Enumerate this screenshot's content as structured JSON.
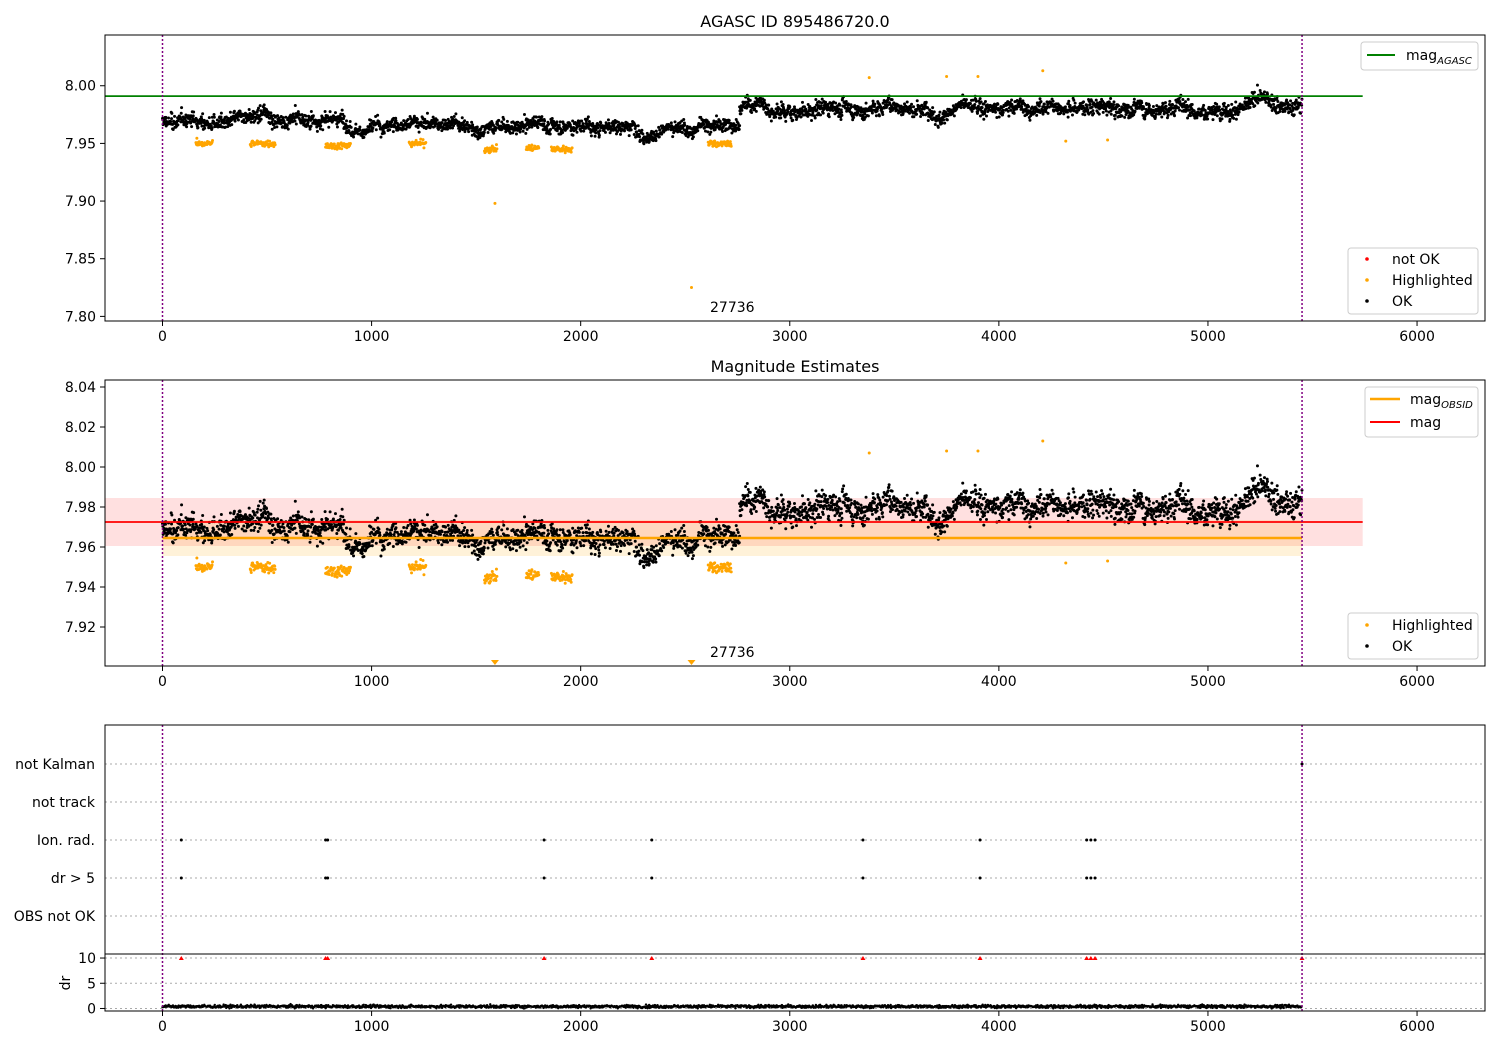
{
  "chart_data": [
    {
      "type": "scatter",
      "title": "AGASC ID 895486720.0",
      "xlim": [
        -275,
        6325
      ],
      "ylim": [
        7.796,
        8.044
      ],
      "xticks": [
        0,
        1000,
        2000,
        3000,
        4000,
        5000,
        6000
      ],
      "yticks": [
        7.8,
        7.85,
        7.9,
        7.95,
        8.0
      ],
      "ytick_labels": [
        "7.80",
        "7.85",
        "7.90",
        "7.95",
        "8.00"
      ],
      "vlines": [
        0,
        5450
      ],
      "annotation": {
        "text": "27736",
        "x": 2620,
        "y": 7.806
      },
      "hline": {
        "label": "mag",
        "label_sub": "AGASC",
        "y": 7.991,
        "x_range": [
          -275,
          5740
        ],
        "color": "#008000"
      },
      "legend_top": [
        {
          "label": "mag",
          "sub": "AGASC",
          "type": "line",
          "color": "#008000"
        }
      ],
      "legend_bottom": [
        {
          "label": "not OK",
          "type": "marker",
          "color": "#ff0000"
        },
        {
          "label": "Highlighted",
          "type": "marker",
          "color": "#ffa500"
        },
        {
          "label": "OK",
          "type": "marker",
          "color": "#000000"
        }
      ],
      "series": [
        {
          "name": "OK",
          "color": "#000000",
          "segments": [
            {
              "x": [
                0,
                2760
              ],
              "mean": 7.968,
              "spread": 0.011
            },
            {
              "x": [
                2760,
                5450
              ],
              "mean": 7.983,
              "spread": 0.012
            }
          ]
        },
        {
          "name": "Highlighted",
          "color": "#ffa500",
          "clusters": [
            {
              "x": [
                160,
                240
              ],
              "y": 7.95
            },
            {
              "x": [
                420,
                540
              ],
              "y": 7.95
            },
            {
              "x": [
                780,
                900
              ],
              "y": 7.948
            },
            {
              "x": [
                1180,
                1260
              ],
              "y": 7.95
            },
            {
              "x": [
                1540,
                1600
              ],
              "y": 7.945
            },
            {
              "x": [
                1740,
                1800
              ],
              "y": 7.946
            },
            {
              "x": [
                1860,
                1960
              ],
              "y": 7.945
            },
            {
              "x": [
                2610,
                2720
              ],
              "y": 7.95
            }
          ],
          "points": [
            {
              "x": 1590,
              "y": 7.898
            },
            {
              "x": 2530,
              "y": 7.825
            },
            {
              "x": 3380,
              "y": 8.007
            },
            {
              "x": 3750,
              "y": 8.008
            },
            {
              "x": 3900,
              "y": 8.008
            },
            {
              "x": 4210,
              "y": 8.013
            },
            {
              "x": 4320,
              "y": 7.952
            },
            {
              "x": 4520,
              "y": 7.953
            }
          ]
        }
      ]
    },
    {
      "type": "scatter",
      "title": "Magnitude Estimates",
      "xlim": [
        -275,
        6325
      ],
      "ylim": [
        7.9005,
        8.0435
      ],
      "xticks": [
        0,
        1000,
        2000,
        3000,
        4000,
        5000,
        6000
      ],
      "yticks": [
        7.92,
        7.94,
        7.96,
        7.98,
        8.0,
        8.02,
        8.04
      ],
      "ytick_labels": [
        "7.92",
        "7.94",
        "7.96",
        "7.98",
        "8.00",
        "8.02",
        "8.04"
      ],
      "vlines": [
        0,
        5450
      ],
      "annotation": {
        "text": "27736",
        "x": 2620,
        "y": 7.904
      },
      "mag_line": {
        "y": 7.9725,
        "band": [
          7.9605,
          7.9845
        ],
        "x_range": [
          -275,
          5740
        ],
        "color": "#ff0000"
      },
      "mag_obsid_line": {
        "y": 7.9645,
        "band": [
          7.9555,
          7.9735
        ],
        "x_range": [
          0,
          5450
        ],
        "color": "#ffa500"
      },
      "offscale_markers": [
        {
          "x": 1590
        },
        {
          "x": 2530
        }
      ],
      "legend_top": [
        {
          "label": "mag",
          "sub": "OBSID",
          "type": "line",
          "color": "#ffa500"
        },
        {
          "label": "mag",
          "sub": "",
          "type": "line",
          "color": "#ff0000"
        }
      ],
      "legend_bottom": [
        {
          "label": "Highlighted",
          "type": "marker",
          "color": "#ffa500"
        },
        {
          "label": "OK",
          "type": "marker",
          "color": "#000000"
        }
      ]
    },
    {
      "type": "scatter",
      "xlim": [
        -275,
        6325
      ],
      "xticks": [
        0,
        1000,
        2000,
        3000,
        4000,
        5000,
        6000
      ],
      "vlines": [
        0,
        5450
      ],
      "flag_categories": [
        "not Kalman",
        "not track",
        "Ion. rad.",
        "dr > 5",
        "OBS not OK"
      ],
      "flag_points": {
        "Ion. rad.": [
          90,
          780,
          790,
          1825,
          2340,
          3350,
          3910,
          4420,
          4440,
          4460
        ],
        "dr > 5": [
          90,
          780,
          790,
          1825,
          2340,
          3350,
          3910,
          4420,
          4440,
          4460
        ],
        "not Kalman": [
          5450
        ]
      },
      "dr_panel": {
        "ylabel": "dr",
        "ylim": [
          -0.5,
          10.8
        ],
        "yticks": [
          0,
          5,
          10
        ],
        "ytick_labels": [
          "0",
          "5",
          "10"
        ],
        "dr_mean": 0.4,
        "clipped_markers_y": 10,
        "clipped_x": [
          90,
          780,
          790,
          1825,
          2340,
          3350,
          3910,
          4420,
          4440,
          4460,
          5450
        ]
      }
    }
  ]
}
